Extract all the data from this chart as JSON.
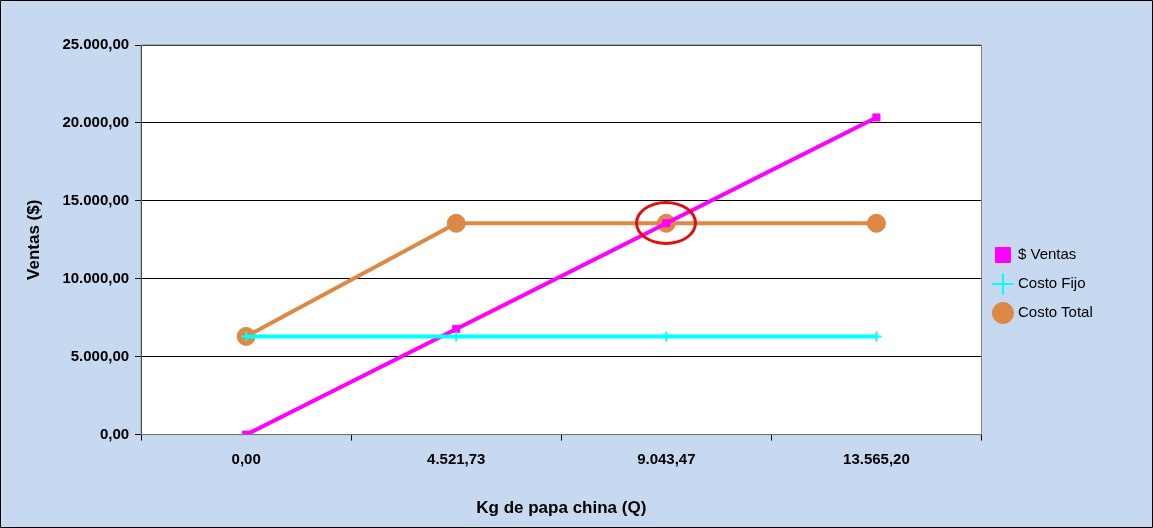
{
  "chart_data": {
    "type": "line",
    "xlabel": "Kg de papa china (Q)",
    "ylabel": "Ventas ($)",
    "categories": [
      "0,00",
      "4.521,73",
      "9.043,47",
      "13.565,20"
    ],
    "series": [
      {
        "name": "$ Ventas",
        "color": "#ff00ff",
        "marker": "square",
        "values": [
          0,
          6780,
          13560,
          20350
        ]
      },
      {
        "name": "Costo Fijo",
        "color": "#00ffff",
        "marker": "cross",
        "values": [
          6300,
          6300,
          6300,
          6300
        ]
      },
      {
        "name": "Costo Total",
        "color": "#dd8844",
        "marker": "circle",
        "values": [
          6300,
          13560,
          13560,
          13560
        ]
      }
    ],
    "ylim": [
      0,
      25000
    ],
    "yticks": [
      {
        "value": 0,
        "label": "0,00"
      },
      {
        "value": 5000,
        "label": "5.000,00"
      },
      {
        "value": 10000,
        "label": "10.000,00"
      },
      {
        "value": 15000,
        "label": "15.000,00"
      },
      {
        "value": 20000,
        "label": "20.000,00"
      },
      {
        "value": 25000,
        "label": "25.000,00"
      }
    ],
    "grid": "y",
    "legend": "right",
    "line_style": "solid"
  }
}
